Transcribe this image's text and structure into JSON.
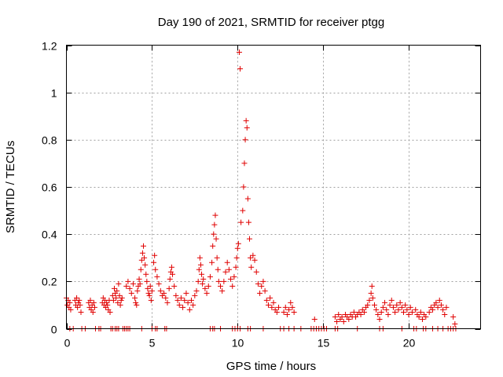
{
  "chart_data": {
    "type": "scatter",
    "title": "Day 190 of 2021, SRMTID for receiver ptgg",
    "xlabel": "GPS time / hours",
    "ylabel": "SRMTID / TECUs",
    "xlim": [
      0,
      24.2
    ],
    "ylim": [
      0,
      1.2
    ],
    "xticks": [
      0,
      5,
      10,
      15,
      20
    ],
    "xtick_labels": [
      "0",
      "5",
      "10",
      "15",
      "20"
    ],
    "yticks": [
      0,
      0.2,
      0.4,
      0.6,
      0.8,
      1,
      1.2
    ],
    "ytick_labels": [
      "0",
      "0.2",
      "0.4",
      "0.6",
      "0.8",
      "1",
      "1.2"
    ],
    "grid": true,
    "marker": "+",
    "color": "#e00000",
    "series": [
      {
        "name": "SRMTID",
        "points": [
          [
            0.0,
            0.13
          ],
          [
            0.05,
            0.1
          ],
          [
            0.1,
            0.12
          ],
          [
            0.15,
            0.09
          ],
          [
            0.2,
            0.11
          ],
          [
            0.25,
            0.08
          ],
          [
            0.5,
            0.12
          ],
          [
            0.55,
            0.1
          ],
          [
            0.6,
            0.13
          ],
          [
            0.65,
            0.09
          ],
          [
            0.7,
            0.11
          ],
          [
            0.75,
            0.12
          ],
          [
            0.8,
            0.1
          ],
          [
            0.85,
            0.07
          ],
          [
            1.3,
            0.11
          ],
          [
            1.35,
            0.09
          ],
          [
            1.4,
            0.12
          ],
          [
            1.45,
            0.08
          ],
          [
            1.5,
            0.1
          ],
          [
            1.55,
            0.07
          ],
          [
            1.6,
            0.11
          ],
          [
            1.65,
            0.09
          ],
          [
            2.1,
            0.11
          ],
          [
            2.15,
            0.13
          ],
          [
            2.2,
            0.1
          ],
          [
            2.25,
            0.12
          ],
          [
            2.3,
            0.09
          ],
          [
            2.35,
            0.11
          ],
          [
            2.4,
            0.1
          ],
          [
            2.45,
            0.08
          ],
          [
            2.5,
            0.12
          ],
          [
            2.55,
            0.07
          ],
          [
            2.7,
            0.14
          ],
          [
            2.75,
            0.12
          ],
          [
            2.8,
            0.17
          ],
          [
            2.85,
            0.15
          ],
          [
            2.9,
            0.13
          ],
          [
            2.95,
            0.16
          ],
          [
            3.0,
            0.11
          ],
          [
            3.05,
            0.19
          ],
          [
            3.1,
            0.14
          ],
          [
            3.15,
            0.1
          ],
          [
            3.2,
            0.12
          ],
          [
            3.25,
            0.13
          ],
          [
            3.5,
            0.18
          ],
          [
            3.6,
            0.2
          ],
          [
            3.7,
            0.17
          ],
          [
            3.8,
            0.15
          ],
          [
            3.9,
            0.19
          ],
          [
            4.0,
            0.13
          ],
          [
            4.05,
            0.11
          ],
          [
            4.1,
            0.1
          ],
          [
            4.15,
            0.16
          ],
          [
            4.2,
            0.18
          ],
          [
            4.25,
            0.21
          ],
          [
            4.3,
            0.19
          ],
          [
            4.35,
            0.25
          ],
          [
            4.4,
            0.29
          ],
          [
            4.45,
            0.32
          ],
          [
            4.5,
            0.35
          ],
          [
            4.55,
            0.3
          ],
          [
            4.6,
            0.27
          ],
          [
            4.65,
            0.23
          ],
          [
            4.7,
            0.2
          ],
          [
            4.75,
            0.17
          ],
          [
            4.8,
            0.15
          ],
          [
            4.85,
            0.14
          ],
          [
            4.9,
            0.18
          ],
          [
            4.95,
            0.12
          ],
          [
            5.0,
            0.16
          ],
          [
            5.1,
            0.28
          ],
          [
            5.15,
            0.31
          ],
          [
            5.2,
            0.25
          ],
          [
            5.3,
            0.22
          ],
          [
            5.4,
            0.19
          ],
          [
            5.5,
            0.16
          ],
          [
            5.6,
            0.14
          ],
          [
            5.7,
            0.15
          ],
          [
            5.8,
            0.13
          ],
          [
            5.9,
            0.11
          ],
          [
            6.0,
            0.17
          ],
          [
            6.05,
            0.21
          ],
          [
            6.1,
            0.24
          ],
          [
            6.15,
            0.26
          ],
          [
            6.2,
            0.23
          ],
          [
            6.3,
            0.18
          ],
          [
            6.4,
            0.14
          ],
          [
            6.5,
            0.12
          ],
          [
            6.6,
            0.1
          ],
          [
            6.7,
            0.13
          ],
          [
            6.8,
            0.09
          ],
          [
            6.9,
            0.12
          ],
          [
            7.0,
            0.15
          ],
          [
            7.1,
            0.11
          ],
          [
            7.2,
            0.08
          ],
          [
            7.3,
            0.12
          ],
          [
            7.4,
            0.1
          ],
          [
            7.5,
            0.14
          ],
          [
            7.6,
            0.16
          ],
          [
            7.7,
            0.2
          ],
          [
            7.75,
            0.25
          ],
          [
            7.8,
            0.3
          ],
          [
            7.85,
            0.27
          ],
          [
            7.9,
            0.23
          ],
          [
            7.95,
            0.19
          ],
          [
            8.0,
            0.21
          ],
          [
            8.1,
            0.17
          ],
          [
            8.2,
            0.15
          ],
          [
            8.3,
            0.18
          ],
          [
            8.4,
            0.22
          ],
          [
            8.5,
            0.28
          ],
          [
            8.55,
            0.35
          ],
          [
            8.6,
            0.4
          ],
          [
            8.65,
            0.44
          ],
          [
            8.7,
            0.48
          ],
          [
            8.75,
            0.38
          ],
          [
            8.8,
            0.3
          ],
          [
            8.85,
            0.25
          ],
          [
            8.9,
            0.2
          ],
          [
            9.0,
            0.18
          ],
          [
            9.1,
            0.16
          ],
          [
            9.2,
            0.2
          ],
          [
            9.3,
            0.24
          ],
          [
            9.4,
            0.28
          ],
          [
            9.5,
            0.25
          ],
          [
            9.6,
            0.21
          ],
          [
            9.7,
            0.18
          ],
          [
            9.8,
            0.22
          ],
          [
            9.9,
            0.26
          ],
          [
            9.95,
            0.3
          ],
          [
            10.0,
            0.34
          ],
          [
            10.05,
            0.36
          ],
          [
            10.1,
            1.17
          ],
          [
            10.15,
            1.1
          ],
          [
            10.2,
            0.45
          ],
          [
            10.3,
            0.5
          ],
          [
            10.35,
            0.6
          ],
          [
            10.4,
            0.7
          ],
          [
            10.45,
            0.8
          ],
          [
            10.5,
            0.88
          ],
          [
            10.55,
            0.85
          ],
          [
            10.6,
            0.55
          ],
          [
            10.65,
            0.45
          ],
          [
            10.7,
            0.38
          ],
          [
            10.75,
            0.3
          ],
          [
            10.8,
            0.26
          ],
          [
            10.9,
            0.31
          ],
          [
            11.0,
            0.29
          ],
          [
            11.1,
            0.24
          ],
          [
            11.2,
            0.19
          ],
          [
            11.3,
            0.15
          ],
          [
            11.4,
            0.18
          ],
          [
            11.5,
            0.2
          ],
          [
            11.6,
            0.16
          ],
          [
            11.7,
            0.12
          ],
          [
            11.8,
            0.1
          ],
          [
            11.9,
            0.13
          ],
          [
            12.0,
            0.09
          ],
          [
            12.1,
            0.11
          ],
          [
            12.2,
            0.08
          ],
          [
            12.3,
            0.07
          ],
          [
            12.4,
            0.09
          ],
          [
            12.7,
            0.07
          ],
          [
            12.8,
            0.09
          ],
          [
            12.9,
            0.06
          ],
          [
            13.0,
            0.08
          ],
          [
            13.1,
            0.11
          ],
          [
            13.2,
            0.09
          ],
          [
            13.3,
            0.07
          ],
          [
            14.5,
            0.04
          ],
          [
            15.7,
            0.05
          ],
          [
            15.8,
            0.03
          ],
          [
            15.9,
            0.06
          ],
          [
            16.0,
            0.04
          ],
          [
            16.1,
            0.05
          ],
          [
            16.2,
            0.03
          ],
          [
            16.3,
            0.06
          ],
          [
            16.4,
            0.05
          ],
          [
            16.5,
            0.04
          ],
          [
            16.6,
            0.06
          ],
          [
            16.7,
            0.05
          ],
          [
            16.8,
            0.07
          ],
          [
            16.9,
            0.05
          ],
          [
            17.0,
            0.06
          ],
          [
            17.1,
            0.07
          ],
          [
            17.2,
            0.06
          ],
          [
            17.3,
            0.08
          ],
          [
            17.4,
            0.07
          ],
          [
            17.5,
            0.09
          ],
          [
            17.6,
            0.1
          ],
          [
            17.7,
            0.12
          ],
          [
            17.8,
            0.15
          ],
          [
            17.85,
            0.18
          ],
          [
            17.9,
            0.13
          ],
          [
            18.0,
            0.1
          ],
          [
            18.1,
            0.08
          ],
          [
            18.2,
            0.06
          ],
          [
            18.3,
            0.04
          ],
          [
            18.4,
            0.07
          ],
          [
            18.5,
            0.09
          ],
          [
            18.6,
            0.11
          ],
          [
            18.7,
            0.08
          ],
          [
            18.8,
            0.06
          ],
          [
            18.9,
            0.1
          ],
          [
            19.0,
            0.12
          ],
          [
            19.1,
            0.09
          ],
          [
            19.2,
            0.07
          ],
          [
            19.3,
            0.1
          ],
          [
            19.4,
            0.08
          ],
          [
            19.5,
            0.11
          ],
          [
            19.6,
            0.09
          ],
          [
            19.7,
            0.07
          ],
          [
            19.8,
            0.1
          ],
          [
            19.9,
            0.08
          ],
          [
            20.0,
            0.06
          ],
          [
            20.1,
            0.09
          ],
          [
            20.2,
            0.07
          ],
          [
            20.4,
            0.08
          ],
          [
            20.5,
            0.06
          ],
          [
            20.6,
            0.05
          ],
          [
            20.7,
            0.07
          ],
          [
            20.8,
            0.04
          ],
          [
            20.9,
            0.06
          ],
          [
            21.0,
            0.05
          ],
          [
            21.2,
            0.07
          ],
          [
            21.3,
            0.09
          ],
          [
            21.4,
            0.08
          ],
          [
            21.5,
            0.1
          ],
          [
            21.6,
            0.11
          ],
          [
            21.7,
            0.09
          ],
          [
            21.8,
            0.12
          ],
          [
            21.9,
            0.1
          ],
          [
            22.0,
            0.08
          ],
          [
            22.1,
            0.06
          ],
          [
            22.2,
            0.09
          ],
          [
            22.6,
            0.05
          ],
          [
            22.7,
            0.02
          ],
          [
            0.2,
            0.0
          ],
          [
            0.4,
            0.0
          ],
          [
            0.9,
            0.0
          ],
          [
            1.1,
            0.0
          ],
          [
            1.7,
            0.0
          ],
          [
            1.9,
            0.0
          ],
          [
            2.0,
            0.0
          ],
          [
            2.6,
            0.0
          ],
          [
            2.7,
            0.0
          ],
          [
            2.85,
            0.0
          ],
          [
            2.95,
            0.0
          ],
          [
            3.05,
            0.0
          ],
          [
            3.3,
            0.0
          ],
          [
            3.4,
            0.0
          ],
          [
            3.5,
            0.0
          ],
          [
            3.6,
            0.0
          ],
          [
            3.7,
            0.0
          ],
          [
            4.4,
            0.0
          ],
          [
            5.0,
            0.0
          ],
          [
            5.2,
            0.0
          ],
          [
            5.3,
            0.0
          ],
          [
            5.75,
            0.0
          ],
          [
            5.85,
            0.0
          ],
          [
            8.4,
            0.0
          ],
          [
            8.55,
            0.0
          ],
          [
            8.65,
            0.0
          ],
          [
            9.0,
            0.0
          ],
          [
            9.7,
            0.0
          ],
          [
            9.85,
            0.0
          ],
          [
            10.0,
            0.0
          ],
          [
            10.15,
            0.0
          ],
          [
            10.6,
            0.0
          ],
          [
            10.75,
            0.0
          ],
          [
            11.5,
            0.0
          ],
          [
            12.5,
            0.0
          ],
          [
            12.7,
            0.0
          ],
          [
            13.0,
            0.0
          ],
          [
            13.3,
            0.0
          ],
          [
            13.7,
            0.0
          ],
          [
            14.3,
            0.0
          ],
          [
            14.45,
            0.0
          ],
          [
            14.6,
            0.0
          ],
          [
            14.75,
            0.0
          ],
          [
            14.9,
            0.0
          ],
          [
            15.05,
            0.0
          ],
          [
            15.2,
            0.0
          ],
          [
            15.7,
            0.0
          ],
          [
            15.85,
            0.0
          ],
          [
            17.0,
            0.0
          ],
          [
            18.3,
            0.0
          ],
          [
            18.5,
            0.0
          ],
          [
            19.6,
            0.0
          ],
          [
            20.3,
            0.0
          ],
          [
            20.45,
            0.0
          ],
          [
            20.85,
            0.0
          ],
          [
            21.0,
            0.0
          ],
          [
            21.4,
            0.0
          ],
          [
            21.7,
            0.0
          ],
          [
            22.0,
            0.0
          ],
          [
            22.3,
            0.0
          ],
          [
            22.45,
            0.0
          ],
          [
            22.6,
            0.0
          ],
          [
            22.75,
            0.0
          ]
        ]
      }
    ]
  }
}
